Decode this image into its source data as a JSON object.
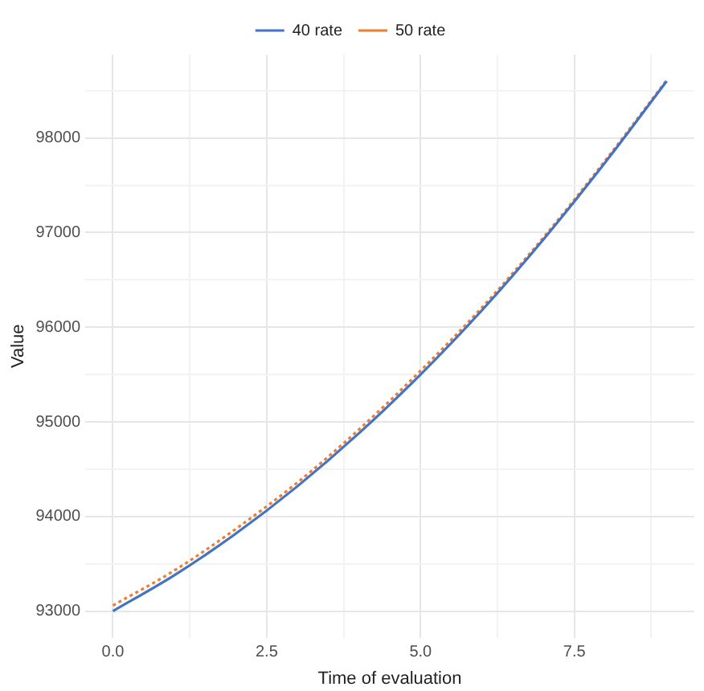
{
  "chart_data": {
    "type": "line",
    "xlabel": "Time of evaluation",
    "ylabel": "Value",
    "x": [
      0,
      1,
      2,
      3,
      4,
      5,
      6,
      7,
      8,
      9
    ],
    "series": [
      {
        "name": "40 rate",
        "color": "#4472c4",
        "line_style": "solid",
        "values": [
          93000,
          93380,
          93820,
          94320,
          94880,
          95500,
          96180,
          96930,
          97740,
          98600
        ]
      },
      {
        "name": "50 rate",
        "color": "#ed7d31",
        "line_style": "dotted",
        "values": [
          93060,
          93430,
          93870,
          94360,
          94920,
          95540,
          96210,
          96950,
          97760,
          98610
        ]
      }
    ],
    "xlim": [
      -0.45,
      9.45
    ],
    "xticks": [
      {
        "value": 0,
        "label": "0.0"
      },
      {
        "value": 1.25,
        "label": null
      },
      {
        "value": 2.5,
        "label": "2.5"
      },
      {
        "value": 3.75,
        "label": null
      },
      {
        "value": 5,
        "label": "5.0"
      },
      {
        "value": 6.25,
        "label": null
      },
      {
        "value": 7.5,
        "label": "7.5"
      },
      {
        "value": 8.75,
        "label": null
      }
    ],
    "ylim": [
      92720,
      98880
    ],
    "yticks": [
      93000,
      {
        "value": 93500,
        "label": null
      },
      94000,
      {
        "value": 94500,
        "label": null
      },
      95000,
      {
        "value": 95500,
        "label": null
      },
      96000,
      {
        "value": 96500,
        "label": null
      },
      97000,
      {
        "value": 97500,
        "label": null
      },
      98000,
      {
        "value": 98500,
        "label": null
      }
    ],
    "grid": true,
    "legend": "top",
    "marker": "none"
  }
}
